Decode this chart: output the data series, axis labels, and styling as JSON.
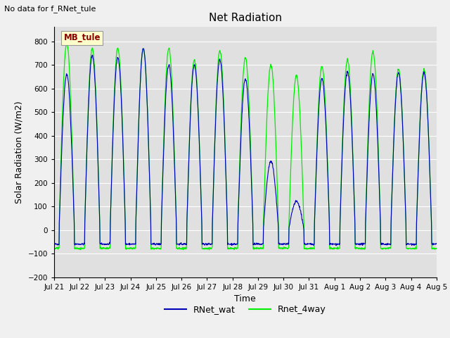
{
  "title": "Net Radiation",
  "xlabel": "Time",
  "ylabel": "Solar Radiation (W/m2)",
  "top_label": "No data for f_RNet_tule",
  "box_label": "MB_tule",
  "ylim": [
    -200,
    860
  ],
  "yticks": [
    -200,
    -100,
    0,
    100,
    200,
    300,
    400,
    500,
    600,
    700,
    800
  ],
  "xtick_labels": [
    "Jul 21",
    "Jul 22",
    "Jul 23",
    "Jul 24",
    "Jul 25",
    "Jul 26",
    "Jul 27",
    "Jul 28",
    "Jul 29",
    "Jul 30",
    "Jul 31",
    "Aug 1",
    "Aug 2",
    "Aug 3",
    "Aug 4",
    "Aug 5"
  ],
  "bg_color": "#e0e0e0",
  "fig_color": "#f0f0f0",
  "line_blue": "#0000bb",
  "line_green": "#00ee00",
  "legend_entries": [
    "RNet_wat",
    "Rnet_4way"
  ],
  "n_days": 15,
  "night_min_blue": -60,
  "night_min_green": -78,
  "day_peaks_blue": [
    660,
    740,
    730,
    770,
    700,
    700,
    720,
    640,
    290,
    120,
    640,
    670,
    660,
    665,
    665
  ],
  "day_peaks_green": [
    790,
    770,
    770,
    770,
    770,
    720,
    760,
    730,
    700,
    655,
    695,
    720,
    755,
    680,
    680
  ]
}
